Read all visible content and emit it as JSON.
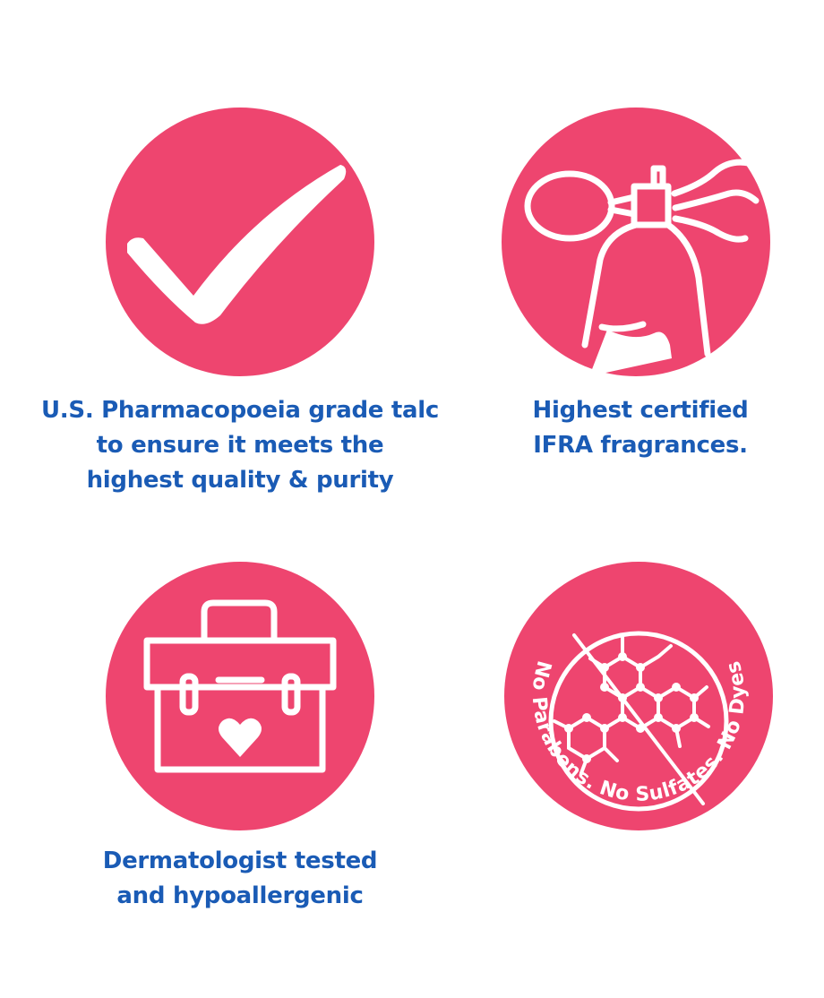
{
  "colors": {
    "badge": "#ee456f",
    "text": "#1a5bb5",
    "icon": "#ffffff"
  },
  "features": [
    {
      "icon": "checkmark-icon",
      "caption": [
        "U.S. Pharmacopoeia grade talc",
        "to ensure it meets the",
        "highest quality & purity"
      ]
    },
    {
      "icon": "perfume-atomizer-icon",
      "caption": [
        "Highest certified",
        "IFRA fragrances."
      ]
    },
    {
      "icon": "medical-kit-heart-icon",
      "caption": [
        "Dermatologist tested",
        "and hypoallergenic"
      ]
    },
    {
      "icon": "no-chemicals-icon",
      "ring_text": "No Parabens. No Sulfates. No Dyes"
    }
  ]
}
